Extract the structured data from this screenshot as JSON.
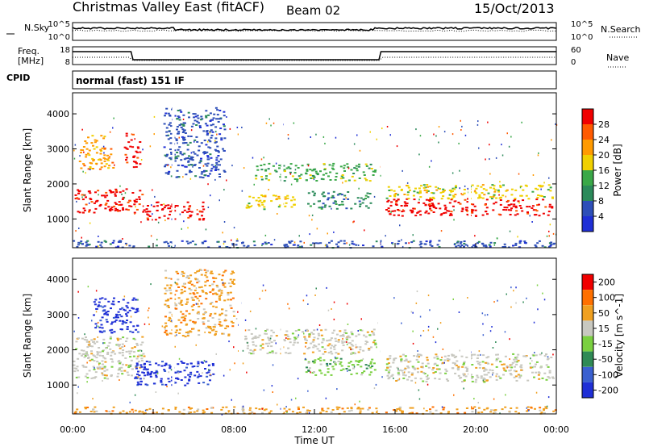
{
  "header": {
    "title": "Christmas Valley East (fitACF)",
    "beam": "Beam 02",
    "date": "15/Oct/2013"
  },
  "status_panels": {
    "nsky_label": "N.Sky",
    "nsky_ticks": [
      "10^5",
      "10^0"
    ],
    "nsearch_label": "N.Search",
    "nsearch_ticks": [
      "10^5",
      "10^0"
    ],
    "freq_label_line1": "Freq.",
    "freq_label_line2": "[MHz]",
    "freq_ticks": [
      "18",
      "8"
    ],
    "nave_label": "Nave",
    "nave_ticks": [
      "60",
      "0"
    ],
    "cpid_label": "CPID",
    "cpid_text": "normal (fast) 151 IF"
  },
  "x_axis": {
    "title": "Time UT",
    "ticks": [
      "00:00",
      "04:00",
      "08:00",
      "12:00",
      "16:00",
      "20:00",
      "00:00"
    ]
  },
  "colors": {
    "power_scale": [
      "#1f2fd6",
      "#2e4fb8",
      "#2b8a5a",
      "#3aa848",
      "#f0d000",
      "#ff9a00",
      "#ff5a00",
      "#f00000"
    ],
    "velocity_scale": [
      "#1f2fd6",
      "#3a60d0",
      "#2f8a55",
      "#7ad040",
      "#c8c8c0",
      "#f0a020",
      "#ff7000",
      "#f00000"
    ]
  },
  "chart_data": [
    {
      "type": "heatmap",
      "title": "",
      "xlabel": "Time UT",
      "ylabel": "Slant Range [km]",
      "xlim": [
        0,
        24
      ],
      "ylim": [
        180,
        4600
      ],
      "y_ticks": [
        "1000",
        "2000",
        "3000",
        "4000"
      ],
      "colorbar_label": "Power [dB]",
      "colorbar_ticks": [
        "4",
        "8",
        "12",
        "16",
        "20",
        "24",
        "28"
      ],
      "gaps_hours": [
        5.0,
        8.3,
        10.4,
        15.2,
        19.7
      ],
      "regions": [
        {
          "x0": 0.1,
          "x1": 3.5,
          "y0": 1200,
          "y1": 1900,
          "level": 7
        },
        {
          "x0": 0.3,
          "x1": 2.0,
          "y0": 2400,
          "y1": 3400,
          "level": 5
        },
        {
          "x0": 2.5,
          "x1": 3.3,
          "y0": 2500,
          "y1": 3500,
          "level": 7
        },
        {
          "x0": 3.5,
          "x1": 6.5,
          "y0": 1000,
          "y1": 1500,
          "level": 7
        },
        {
          "x0": 4.5,
          "x1": 7.5,
          "y0": 2200,
          "y1": 4200,
          "level": 1
        },
        {
          "x0": 8.5,
          "x1": 11.0,
          "y0": 1300,
          "y1": 1700,
          "level": 4
        },
        {
          "x0": 9.0,
          "x1": 15.0,
          "y0": 2100,
          "y1": 2600,
          "level": 3
        },
        {
          "x0": 11.5,
          "x1": 14.8,
          "y0": 1300,
          "y1": 1800,
          "level": 2
        },
        {
          "x0": 15.5,
          "x1": 23.8,
          "y0": 1100,
          "y1": 1600,
          "level": 7
        },
        {
          "x0": 15.5,
          "x1": 23.8,
          "y0": 1600,
          "y1": 2000,
          "level": 4
        },
        {
          "x0": 0.0,
          "x1": 24.0,
          "y0": 200,
          "y1": 400,
          "level": 1
        }
      ]
    },
    {
      "type": "heatmap",
      "title": "",
      "xlabel": "Time UT",
      "ylabel": "Slant Range [km]",
      "xlim": [
        0,
        24
      ],
      "ylim": [
        180,
        4600
      ],
      "y_ticks": [
        "1000",
        "2000",
        "3000",
        "4000"
      ],
      "colorbar_label": "Velocity [m s^-1]",
      "colorbar_ticks": [
        "200",
        "100",
        "50",
        "15",
        "-15",
        "-50",
        "-100",
        "-200"
      ],
      "gaps_hours": [
        5.0,
        8.3,
        10.4,
        15.2,
        19.7
      ],
      "regions": [
        {
          "x0": 0.0,
          "x1": 3.5,
          "y0": 1200,
          "y1": 2400,
          "level": 4
        },
        {
          "x0": 1.0,
          "x1": 3.2,
          "y0": 2500,
          "y1": 3500,
          "level": 0
        },
        {
          "x0": 3.0,
          "x1": 7.0,
          "y0": 1000,
          "y1": 1700,
          "level": 0
        },
        {
          "x0": 4.5,
          "x1": 8.0,
          "y0": 2400,
          "y1": 4300,
          "level": 5
        },
        {
          "x0": 8.5,
          "x1": 15.0,
          "y0": 1900,
          "y1": 2600,
          "level": 4
        },
        {
          "x0": 11.5,
          "x1": 15.0,
          "y0": 1300,
          "y1": 1800,
          "level": 3
        },
        {
          "x0": 15.5,
          "x1": 23.8,
          "y0": 1100,
          "y1": 1900,
          "level": 4
        },
        {
          "x0": 0.0,
          "x1": 24.0,
          "y0": 200,
          "y1": 400,
          "level": 5
        }
      ]
    }
  ]
}
